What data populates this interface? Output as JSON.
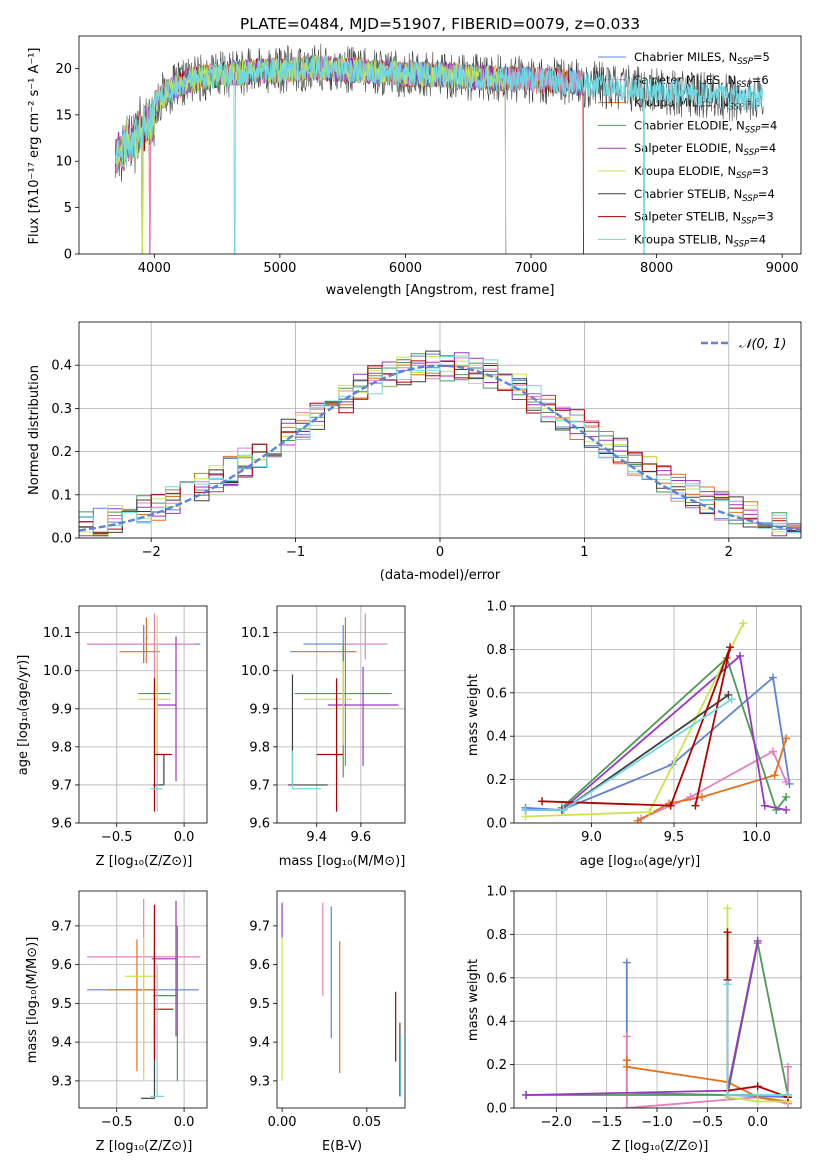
{
  "colors": {
    "Chabrier MILES": "#5b84d8",
    "Salpeter MILES": "#e67fbf",
    "Kroupa MILES": "#e5711d",
    "Chabrier ELODIE": "#4e9a55",
    "Salpeter ELODIE": "#9b36c1",
    "Kroupa ELODIE": "#c8e64b",
    "Chabrier STELIB": "#404040",
    "Salpeter STELIB": "#b00000",
    "Kroupa STELIB": "#6fd8e0"
  },
  "chart_data": [
    {
      "id": "spectrum",
      "type": "line",
      "title": "PLATE=0484, MJD=51907, FIBERID=0079, z=0.033",
      "xlabel": "wavelength [Angstrom, rest frame]",
      "ylabel": "Flux [fλ10⁻¹⁷ erg cm⁻² s⁻¹ A⁻¹]",
      "xlim": [
        3400,
        9150
      ],
      "ylim": [
        0,
        23.5
      ],
      "xticks": [
        4000,
        5000,
        6000,
        7000,
        8000,
        9000
      ],
      "yticks": [
        0,
        5,
        10,
        15,
        20
      ],
      "grid": false,
      "legend_position": "right",
      "legend": [
        {
          "label": "Chabrier MILES, N",
          "sub": "SSP",
          "n": "=5",
          "model": "Chabrier MILES"
        },
        {
          "label": "Salpeter MILES, N",
          "sub": "SSP",
          "n": "=6",
          "model": "Salpeter MILES"
        },
        {
          "label": "Kroupa MILES, N",
          "sub": "SSP",
          "n": "=6",
          "model": "Kroupa MILES"
        },
        {
          "label": "Chabrier ELODIE, N",
          "sub": "SSP",
          "n": "=4",
          "model": "Chabrier ELODIE"
        },
        {
          "label": "Salpeter ELODIE, N",
          "sub": "SSP",
          "n": "=4",
          "model": "Salpeter ELODIE"
        },
        {
          "label": "Kroupa ELODIE, N",
          "sub": "SSP",
          "n": "=3",
          "model": "Kroupa ELODIE"
        },
        {
          "label": "Chabrier STELIB, N",
          "sub": "SSP",
          "n": "=4",
          "model": "Chabrier STELIB"
        },
        {
          "label": "Salpeter STELIB, N",
          "sub": "SSP",
          "n": "=3",
          "model": "Salpeter STELIB"
        },
        {
          "label": "Kroupa STELIB, N",
          "sub": "SSP",
          "n": "=4",
          "model": "Kroupa STELIB"
        }
      ],
      "continuum": [
        [
          3690,
          12
        ],
        [
          3800,
          13.5
        ],
        [
          3950,
          15.5
        ],
        [
          4100,
          17.5
        ],
        [
          4300,
          18.8
        ],
        [
          4500,
          19.3
        ],
        [
          4800,
          19.7
        ],
        [
          5000,
          19.8
        ],
        [
          5300,
          20.1
        ],
        [
          5600,
          19.8
        ],
        [
          6000,
          19.4
        ],
        [
          6300,
          19.3
        ],
        [
          6600,
          19.0
        ],
        [
          7000,
          18.8
        ],
        [
          7400,
          18.4
        ],
        [
          7800,
          17.8
        ],
        [
          8200,
          17.3
        ],
        [
          8600,
          16.9
        ],
        [
          8850,
          16.8
        ]
      ],
      "model_ranges": {
        "Chabrier MILES": [
          3690,
          7400
        ],
        "Salpeter MILES": [
          3690,
          7400
        ],
        "Kroupa MILES": [
          3690,
          7400
        ],
        "Chabrier ELODIE": [
          3690,
          6800
        ],
        "Salpeter ELODIE": [
          3690,
          6800
        ],
        "Kroupa ELODIE": [
          3690,
          6800
        ],
        "Chabrier STELIB": [
          3690,
          8850
        ],
        "Salpeter STELIB": [
          3690,
          7420
        ],
        "Kroupa STELIB": [
          3690,
          8850
        ]
      }
    },
    {
      "id": "residuals",
      "type": "histogram",
      "xlabel": "(data-model)/error",
      "ylabel": "Normed distribution",
      "xlim": [
        -2.5,
        2.5
      ],
      "ylim": [
        0,
        0.5
      ],
      "xticks": [
        -2,
        -1,
        0,
        1,
        2
      ],
      "yticks": [
        0.0,
        0.1,
        0.2,
        0.3,
        0.4
      ],
      "grid": true,
      "bin_width": 0.1,
      "legend_position": "top-right",
      "legend": [
        {
          "label": "𝒩(0, 1)",
          "style": "dashed",
          "color": "#5b84d8"
        }
      ],
      "reference_curve": {
        "name": "𝒩(0, 1)",
        "mean": 0,
        "sigma": 1
      }
    },
    {
      "id": "age-vs-Z",
      "type": "errorbar",
      "xlabel": "Z [log₁₀(Z/Z⊙)]",
      "ylabel": "age  [log₁₀(age/yr)]",
      "xlim": [
        -0.78,
        0.17
      ],
      "ylim": [
        9.6,
        10.17
      ],
      "xticks": [
        -0.5,
        0.0
      ],
      "xticklabels": [
        "−0.5",
        "0.0"
      ],
      "yticks": [
        9.6,
        9.7,
        9.8,
        9.9,
        10.0,
        10.1
      ],
      "grid": true,
      "points": [
        {
          "model": "Chabrier MILES",
          "x": -0.3,
          "xerr": [
            0.42,
            0.42
          ],
          "y": 10.07,
          "yerr": [
            0.05,
            0.05
          ]
        },
        {
          "model": "Salpeter MILES",
          "x": -0.22,
          "xerr": [
            0.5,
            0.3
          ],
          "y": 10.07,
          "yerr": [
            0.33,
            0.08
          ]
        },
        {
          "model": "Kroupa MILES",
          "x": -0.28,
          "xerr": [
            0.2,
            0.1
          ],
          "y": 10.05,
          "yerr": [
            0.03,
            0.09
          ]
        },
        {
          "model": "Chabrier ELODIE",
          "x": -0.2,
          "xerr": [
            0.14,
            0.1
          ],
          "y": 9.94,
          "yerr": [
            0.22,
            0.13
          ]
        },
        {
          "model": "Salpeter ELODIE",
          "x": -0.06,
          "xerr": [
            0.14,
            0.0
          ],
          "y": 9.91,
          "yerr": [
            0.2,
            0.18
          ]
        },
        {
          "model": "Kroupa ELODIE",
          "x": -0.2,
          "xerr": [
            0.14,
            0.1
          ],
          "y": 9.925,
          "yerr": [
            0.24,
            0.22
          ]
        },
        {
          "model": "Chabrier STELIB",
          "x": -0.15,
          "xerr": [
            0.08,
            0.0
          ],
          "y": 9.7,
          "yerr": [
            0.0,
            0.08
          ]
        },
        {
          "model": "Salpeter STELIB",
          "x": -0.22,
          "xerr": [
            0.0,
            0.13
          ],
          "y": 9.78,
          "yerr": [
            0.15,
            0.2
          ]
        },
        {
          "model": "Kroupa STELIB",
          "x": -0.2,
          "xerr": [
            0.05,
            0.04
          ],
          "y": 9.69,
          "yerr": [
            0.06,
            0.08
          ]
        }
      ]
    },
    {
      "id": "age-vs-mass",
      "type": "errorbar",
      "xlabel": "mass [log₁₀(M/M⊙)]",
      "xlim": [
        9.22,
        9.8
      ],
      "ylim": [
        9.6,
        10.17
      ],
      "xticks": [
        9.4,
        9.6
      ],
      "xticklabels": [
        "9.4",
        "9.6"
      ],
      "yticks": [
        9.6,
        9.7,
        9.8,
        9.9,
        10.0,
        10.1
      ],
      "grid": true,
      "points": [
        {
          "model": "Chabrier MILES",
          "x": 9.52,
          "xerr": [
            0.18,
            0.06
          ],
          "y": 10.07,
          "yerr": [
            0.05,
            0.05
          ]
        },
        {
          "model": "Salpeter MILES",
          "x": 9.62,
          "xerr": [
            0.1,
            0.1
          ],
          "y": 10.07,
          "yerr": [
            0.04,
            0.08
          ]
        },
        {
          "model": "Kroupa MILES",
          "x": 9.53,
          "xerr": [
            0.25,
            0.05
          ],
          "y": 10.05,
          "yerr": [
            0.3,
            0.09
          ]
        },
        {
          "model": "Chabrier ELODIE",
          "x": 9.52,
          "xerr": [
            0.22,
            0.22
          ],
          "y": 9.94,
          "yerr": [
            0.22,
            0.13
          ]
        },
        {
          "model": "Salpeter ELODIE",
          "x": 9.61,
          "xerr": [
            0.16,
            0.16
          ],
          "y": 9.91,
          "yerr": [
            0.16,
            0.1
          ]
        },
        {
          "model": "Kroupa ELODIE",
          "x": 9.52,
          "xerr": [
            0.18,
            0.04
          ],
          "y": 9.925,
          "yerr": [
            0.12,
            0.1
          ]
        },
        {
          "model": "Chabrier STELIB",
          "x": 9.29,
          "xerr": [
            0.02,
            0.16
          ],
          "y": 9.7,
          "yerr": [
            0.0,
            0.29
          ]
        },
        {
          "model": "Salpeter STELIB",
          "x": 9.49,
          "xerr": [
            0.09,
            0.03
          ],
          "y": 9.78,
          "yerr": [
            0.15,
            0.2
          ]
        },
        {
          "model": "Kroupa STELIB",
          "x": 9.29,
          "xerr": [
            0.0,
            0.13
          ],
          "y": 9.69,
          "yerr": [
            0.0,
            0.1
          ]
        }
      ]
    },
    {
      "id": "massweight-vs-age",
      "type": "line",
      "xlabel": "age  [log₁₀(age/yr)]",
      "ylabel": "mass weight",
      "xlim": [
        8.53,
        10.27
      ],
      "ylim": [
        0,
        1
      ],
      "xticks": [
        9.0,
        9.5,
        10.0
      ],
      "xticklabels": [
        "9.0",
        "9.5",
        "10.0"
      ],
      "yticks": [
        0.0,
        0.2,
        0.4,
        0.6,
        0.8,
        1.0
      ],
      "grid": true,
      "series": [
        {
          "model": "Chabrier MILES",
          "x": [
            8.6,
            8.82,
            9.49,
            10.1,
            10.2
          ],
          "y": [
            0.07,
            0.06,
            0.27,
            0.67,
            0.18
          ]
        },
        {
          "model": "Salpeter MILES",
          "x": [
            9.3,
            9.6,
            10.1,
            10.18
          ],
          "y": [
            0.02,
            0.12,
            0.33,
            0.19
          ]
        },
        {
          "model": "Kroupa MILES",
          "x": [
            9.28,
            9.47,
            9.67,
            10.11,
            10.18
          ],
          "y": [
            0.01,
            0.09,
            0.12,
            0.22,
            0.39
          ]
        },
        {
          "model": "Chabrier ELODIE",
          "x": [
            8.82,
            9.82,
            10.12,
            10.18
          ],
          "y": [
            0.07,
            0.76,
            0.06,
            0.12
          ]
        },
        {
          "model": "Salpeter ELODIE",
          "x": [
            8.82,
            9.9,
            10.05,
            10.18
          ],
          "y": [
            0.06,
            0.77,
            0.08,
            0.06
          ]
        },
        {
          "model": "Kroupa ELODIE",
          "x": [
            8.6,
            9.35,
            9.92
          ],
          "y": [
            0.03,
            0.05,
            0.92
          ]
        },
        {
          "model": "Chabrier STELIB",
          "x": [
            8.6,
            8.83,
            9.83
          ],
          "y": [
            0.06,
            0.06,
            0.59
          ]
        },
        {
          "model": "Salpeter STELIB",
          "x": [
            8.7,
            9.48,
            9.84,
            9.63
          ],
          "y": [
            0.1,
            0.08,
            0.81,
            0.08
          ]
        },
        {
          "model": "Kroupa STELIB",
          "x": [
            8.6,
            8.83,
            9.85
          ],
          "y": [
            0.06,
            0.06,
            0.57
          ]
        }
      ]
    },
    {
      "id": "mass-vs-Z",
      "type": "errorbar",
      "xlabel": "Z [log₁₀(Z/Z⊙)]",
      "ylabel": "mass [log₁₀(M/M⊙)]",
      "xlim": [
        -0.78,
        0.17
      ],
      "ylim": [
        9.23,
        9.79
      ],
      "xticks": [
        -0.5,
        0.0
      ],
      "xticklabels": [
        "−0.5",
        "0.0"
      ],
      "yticks": [
        9.3,
        9.4,
        9.5,
        9.6,
        9.7
      ],
      "grid": true,
      "points": [
        {
          "model": "Chabrier MILES",
          "x": -0.22,
          "xerr": [
            0.5,
            0.33
          ],
          "y": 9.535,
          "yerr": [
            0.12,
            0.2
          ]
        },
        {
          "model": "Salpeter MILES",
          "x": -0.3,
          "xerr": [
            0.42,
            0.42
          ],
          "y": 9.62,
          "yerr": [
            0.3,
            0.15
          ]
        },
        {
          "model": "Kroupa MILES",
          "x": -0.35,
          "xerr": [
            0.22,
            0.15
          ],
          "y": 9.535,
          "yerr": [
            0.21,
            0.13
          ]
        },
        {
          "model": "Chabrier ELODIE",
          "x": -0.05,
          "xerr": [
            0.18,
            0.0
          ],
          "y": 9.52,
          "yerr": [
            0.22,
            0.18
          ]
        },
        {
          "model": "Salpeter ELODIE",
          "x": -0.06,
          "xerr": [
            0.18,
            0.0
          ],
          "y": 9.615,
          "yerr": [
            0.2,
            0.15
          ]
        },
        {
          "model": "Kroupa ELODIE",
          "x": -0.3,
          "xerr": [
            0.14,
            0.1
          ],
          "y": 9.57,
          "yerr": [
            0.27,
            0.1
          ]
        },
        {
          "model": "Chabrier STELIB",
          "x": -0.22,
          "xerr": [
            0.1,
            0.0
          ],
          "y": 9.255,
          "yerr": [
            0.0,
            0.38
          ]
        },
        {
          "model": "Salpeter STELIB",
          "x": -0.22,
          "xerr": [
            0.0,
            0.14
          ],
          "y": 9.485,
          "yerr": [
            0.13,
            0.27
          ]
        },
        {
          "model": "Kroupa STELIB",
          "x": -0.2,
          "xerr": [
            0.05,
            0.05
          ],
          "y": 9.26,
          "yerr": [
            0.0,
            0.34
          ]
        }
      ]
    },
    {
      "id": "mass-vs-EBV",
      "type": "errorbar",
      "xlabel": "E(B-V)",
      "xlim": [
        -0.003,
        0.0725
      ],
      "ylim": [
        9.23,
        9.79
      ],
      "xticks": [
        0.0,
        0.05
      ],
      "xticklabels": [
        "0.00",
        "0.05"
      ],
      "yticks": [
        9.3,
        9.4,
        9.5,
        9.6,
        9.7
      ],
      "grid": false,
      "points": [
        {
          "model": "Kroupa ELODIE",
          "x": 0.0,
          "y": 9.6,
          "yerr": [
            0.3,
            0.07
          ]
        },
        {
          "model": "Salpeter ELODIE",
          "x": 0.0,
          "y": 9.7,
          "yerr": [
            0.03,
            0.06
          ]
        },
        {
          "model": "Salpeter MILES",
          "x": 0.024,
          "y": 9.62,
          "yerr": [
            0.1,
            0.14
          ]
        },
        {
          "model": "Chabrier MILES",
          "x": 0.029,
          "y": 9.58,
          "yerr": [
            0.17,
            0.17
          ]
        },
        {
          "model": "Kroupa MILES",
          "x": 0.034,
          "y": 9.53,
          "yerr": [
            0.21,
            0.13
          ]
        },
        {
          "model": "Salpeter STELIB",
          "x": 0.067,
          "y": 9.44,
          "yerr": [
            0.09,
            0.09
          ]
        },
        {
          "model": "Chabrier STELIB",
          "x": 0.0695,
          "y": 9.35,
          "yerr": [
            0.09,
            0.1
          ]
        },
        {
          "model": "Kroupa STELIB",
          "x": 0.07,
          "y": 9.34,
          "yerr": [
            0.08,
            0.08
          ]
        }
      ]
    },
    {
      "id": "massweight-vs-Z",
      "type": "line",
      "xlabel": "Z [log₁₀(Z/Z⊙)]",
      "ylabel": "mass weight",
      "xlim": [
        -2.42,
        0.43
      ],
      "ylim": [
        0,
        1
      ],
      "xticks": [
        -2.0,
        -1.5,
        -1.0,
        -0.5,
        0.0
      ],
      "xticklabels": [
        "−2.0",
        "−1.5",
        "−1.0",
        "−0.5",
        "0.0"
      ],
      "yticks": [
        0.0,
        0.2,
        0.4,
        0.6,
        0.8,
        1.0
      ],
      "grid": true,
      "series": [
        {
          "model": "Chabrier MILES",
          "x": [
            -1.3,
            -1.3,
            -0.3,
            0.3
          ],
          "y": [
            0.67,
            0.07,
            0.06,
            0.05
          ]
        },
        {
          "model": "Salpeter MILES",
          "x": [
            -1.3,
            -1.3,
            0.0,
            0.3,
            0.3
          ],
          "y": [
            0.33,
            0.0,
            0.05,
            0.02,
            0.19
          ]
        },
        {
          "model": "Kroupa MILES",
          "x": [
            -1.3,
            -1.3,
            -0.3,
            0.0,
            0.3
          ],
          "y": [
            0.22,
            0.19,
            0.12,
            0.05,
            0.03
          ]
        },
        {
          "model": "Chabrier ELODIE",
          "x": [
            -2.3,
            -0.3,
            0.0,
            0.3
          ],
          "y": [
            0.06,
            0.06,
            0.76,
            0.06
          ]
        },
        {
          "model": "Salpeter ELODIE",
          "x": [
            -2.3,
            -0.3,
            0.0
          ],
          "y": [
            0.06,
            0.08,
            0.77
          ]
        },
        {
          "model": "Kroupa ELODIE",
          "x": [
            -0.3,
            -0.3,
            0.0,
            0.3
          ],
          "y": [
            0.92,
            0.05,
            0.03,
            0.03
          ]
        },
        {
          "model": "Chabrier STELIB",
          "x": [
            -0.3,
            -0.3,
            0.0
          ],
          "y": [
            0.59,
            0.06,
            0.06
          ]
        },
        {
          "model": "Salpeter STELIB",
          "x": [
            -0.3,
            -0.3,
            0.0,
            0.3
          ],
          "y": [
            0.81,
            0.08,
            0.1,
            0.05
          ]
        },
        {
          "model": "Kroupa STELIB",
          "x": [
            -0.3,
            -0.3,
            0.0,
            0.3
          ],
          "y": [
            0.57,
            0.06,
            0.06,
            0.06
          ]
        }
      ]
    }
  ]
}
